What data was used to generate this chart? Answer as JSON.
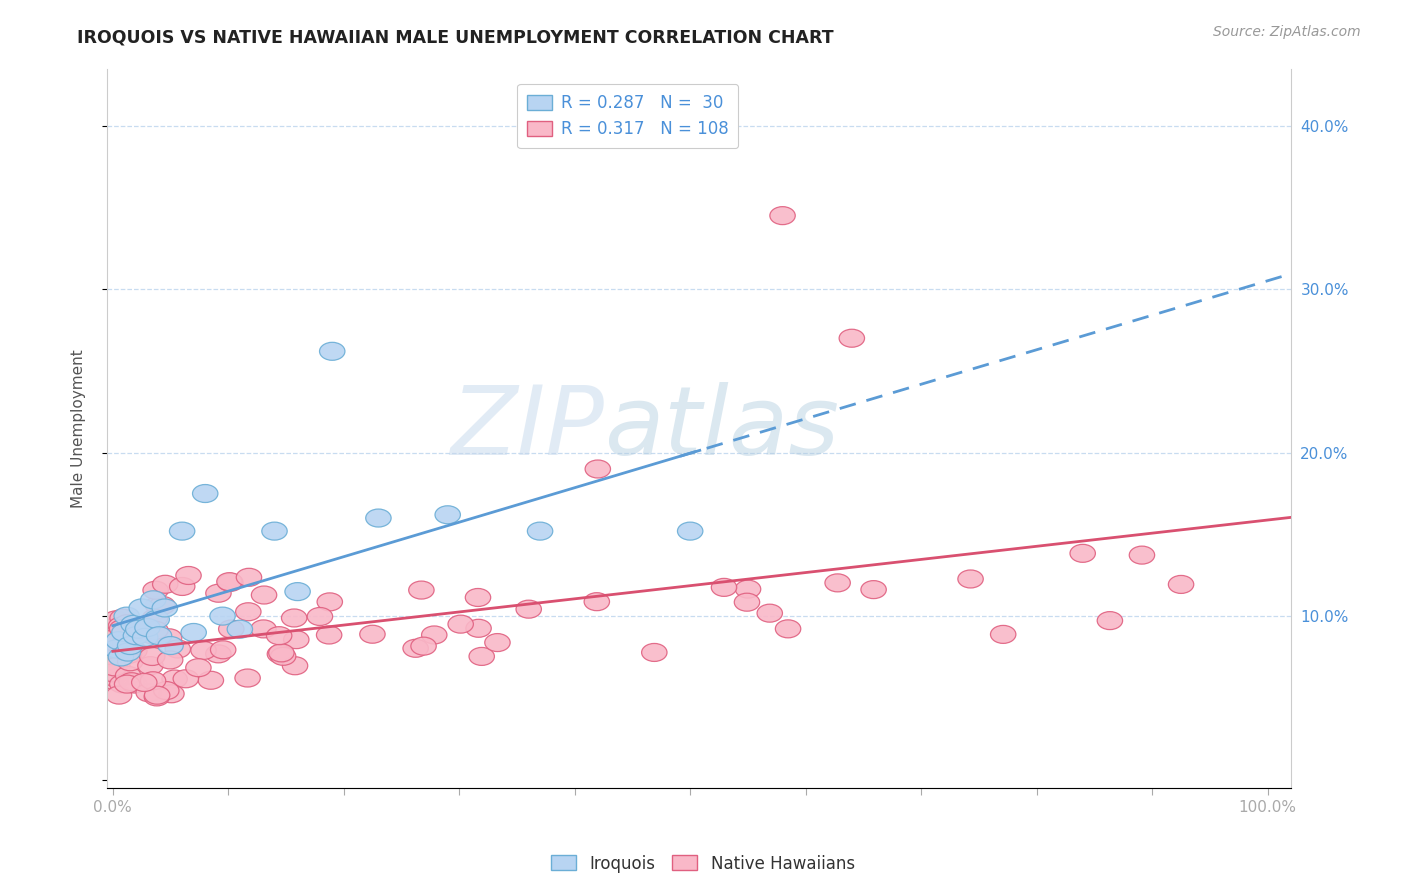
{
  "title": "IROQUOIS VS NATIVE HAWAIIAN MALE UNEMPLOYMENT CORRELATION CHART",
  "source_text": "Source: ZipAtlas.com",
  "ylabel": "Male Unemployment",
  "watermark_zip": "ZIP",
  "watermark_atlas": "atlas",
  "legend_R1": "0.287",
  "legend_N1": "30",
  "legend_R2": "0.317",
  "legend_N2": "108",
  "legend_label1": "Iroquois",
  "legend_label2": "Native Hawaiians",
  "iroquois_face": "#B8D4F2",
  "iroquois_edge": "#6BAED6",
  "nh_face": "#F9B8C8",
  "nh_edge": "#E06080",
  "iroq_line_color": "#5B9BD5",
  "nh_line_color": "#D95070",
  "grid_color": "#C8DCF0",
  "tick_color": "#4A90D9",
  "title_color": "#222222",
  "source_color": "#999999",
  "ylabel_color": "#555555",
  "bg_color": "#FFFFFF",
  "watermark_color": "#D8E8F5"
}
